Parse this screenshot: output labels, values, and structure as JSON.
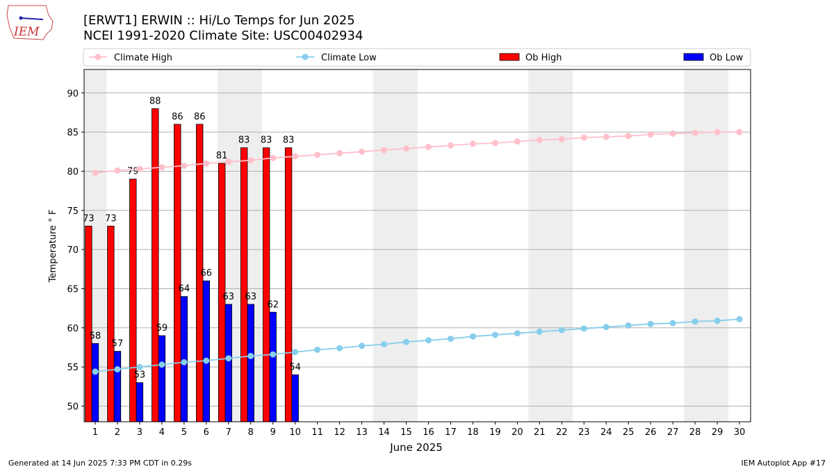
{
  "logo_text": "IEM",
  "footer_left": "Generated at 14 Jun 2025 7:33 PM CDT in 0.29s",
  "footer_right": "IEM Autoplot App #17",
  "chart_data": {
    "type": "bar",
    "title": "[ERWT1] ERWIN :: Hi/Lo Temps for Jun 2025",
    "subtitle": "NCEI 1991-2020 Climate Site: USC00402934",
    "xlabel": "June 2025",
    "ylabel": "Temperature ° F",
    "x": [
      1,
      2,
      3,
      4,
      5,
      6,
      7,
      8,
      9,
      10,
      11,
      12,
      13,
      14,
      15,
      16,
      17,
      18,
      19,
      20,
      21,
      22,
      23,
      24,
      25,
      26,
      27,
      28,
      29,
      30
    ],
    "xlim": [
      0.5,
      30.5
    ],
    "xticks": [
      1,
      2,
      3,
      4,
      5,
      6,
      7,
      8,
      9,
      10,
      11,
      12,
      13,
      14,
      15,
      16,
      17,
      18,
      19,
      20,
      21,
      22,
      23,
      24,
      25,
      26,
      27,
      28,
      29,
      30
    ],
    "ylim": [
      48,
      93
    ],
    "yticks": [
      50,
      55,
      60,
      65,
      70,
      75,
      80,
      85,
      90
    ],
    "grid": true,
    "shaded_ranges": [
      [
        0.5,
        1.5
      ],
      [
        6.5,
        8.5
      ],
      [
        13.5,
        15.5
      ],
      [
        20.5,
        22.5
      ],
      [
        27.5,
        29.5
      ]
    ],
    "shade_color": "#eeeeee",
    "series": [
      {
        "name": "Climate High",
        "type": "line",
        "color": "#ffc0cb",
        "values": [
          79.8,
          80.1,
          80.3,
          80.5,
          80.7,
          81.0,
          81.2,
          81.4,
          81.7,
          81.9,
          82.1,
          82.3,
          82.5,
          82.7,
          82.9,
          83.1,
          83.3,
          83.5,
          83.6,
          83.8,
          84.0,
          84.1,
          84.3,
          84.4,
          84.5,
          84.7,
          84.8,
          84.9,
          85.0,
          85.0
        ]
      },
      {
        "name": "Climate Low",
        "type": "line",
        "color": "#87ceeb",
        "values": [
          54.4,
          54.7,
          55.0,
          55.3,
          55.6,
          55.8,
          56.1,
          56.4,
          56.6,
          56.9,
          57.2,
          57.4,
          57.7,
          57.9,
          58.2,
          58.4,
          58.6,
          58.9,
          59.1,
          59.3,
          59.5,
          59.7,
          59.9,
          60.1,
          60.3,
          60.5,
          60.6,
          60.8,
          60.9,
          61.1
        ]
      },
      {
        "name": "Ob High",
        "type": "bar",
        "color": "#ff0000",
        "values": [
          73,
          73,
          79,
          88,
          86,
          86,
          81,
          83,
          83,
          83,
          null,
          null,
          null,
          null,
          null,
          null,
          null,
          null,
          null,
          null,
          null,
          null,
          null,
          null,
          null,
          null,
          null,
          null,
          null,
          null
        ]
      },
      {
        "name": "Ob Low",
        "type": "bar",
        "color": "#0000ff",
        "values": [
          58,
          57,
          53,
          59,
          64,
          66,
          63,
          63,
          62,
          54,
          null,
          null,
          null,
          null,
          null,
          null,
          null,
          null,
          null,
          null,
          null,
          null,
          null,
          null,
          null,
          null,
          null,
          null,
          null,
          null
        ]
      }
    ]
  }
}
